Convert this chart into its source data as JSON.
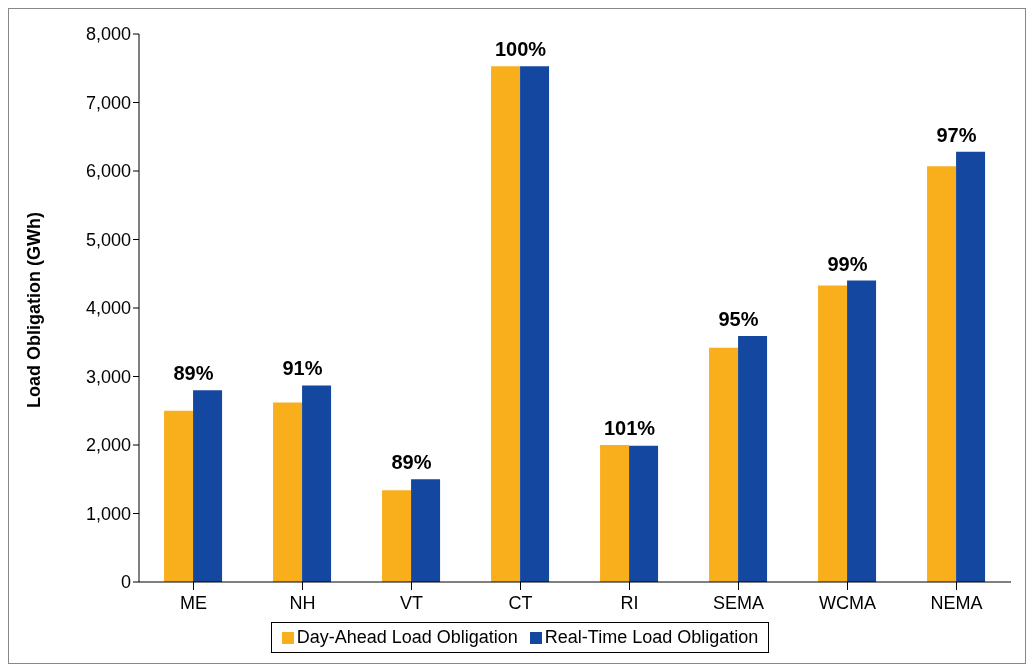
{
  "chart_data": {
    "type": "bar",
    "ylabel": "Load Obligation  (GWh)",
    "categories": [
      "ME",
      "NH",
      "VT",
      "CT",
      "RI",
      "SEMA",
      "WCMA",
      "NEMA"
    ],
    "series": [
      {
        "name": "Day-Ahead Load Obligation",
        "color": "#f9ae1c",
        "values": [
          2500,
          2620,
          1340,
          7530,
          2000,
          3420,
          4330,
          6070
        ]
      },
      {
        "name": "Real-Time Load Obligation",
        "color": "#1447a0",
        "values": [
          2800,
          2870,
          1500,
          7530,
          1990,
          3590,
          4400,
          6280
        ]
      }
    ],
    "annotations": [
      {
        "text": "89%",
        "x": "ME",
        "y": 2800
      },
      {
        "text": "91%",
        "x": "NH",
        "y": 2870
      },
      {
        "text": "89%",
        "x": "VT",
        "y": 1500
      },
      {
        "text": "100%",
        "x": "CT",
        "y": 7530
      },
      {
        "text": "101%",
        "x": "RI",
        "y": 2000
      },
      {
        "text": "95%",
        "x": "SEMA",
        "y": 3590
      },
      {
        "text": "99%",
        "x": "WCMA",
        "y": 4400
      },
      {
        "text": "97%",
        "x": "NEMA",
        "y": 6280
      }
    ],
    "ylim": [
      0,
      8000
    ],
    "yticks": [
      {
        "value": 0,
        "label": "0"
      },
      {
        "value": 1000,
        "label": "1,000"
      },
      {
        "value": 2000,
        "label": "2,000"
      },
      {
        "value": 3000,
        "label": "3,000"
      },
      {
        "value": 4000,
        "label": "4,000"
      },
      {
        "value": 5000,
        "label": "5,000"
      },
      {
        "value": 6000,
        "label": "6,000"
      },
      {
        "value": 7000,
        "label": "7,000"
      },
      {
        "value": 8000,
        "label": "8,000"
      }
    ],
    "grid": false,
    "legend": "bottom"
  }
}
